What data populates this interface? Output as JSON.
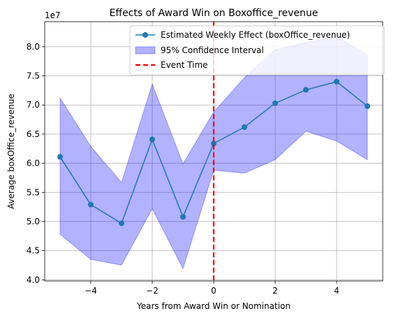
{
  "chart_data": {
    "type": "line",
    "title": "Effects of Award Win on Boxoffice_revenue",
    "xlabel": "Years from Award Win or Nomination",
    "ylabel": "Average boxOffice_revenue",
    "y_offset_label": "1e7",
    "xlim": [
      -5.5,
      5.5
    ],
    "ylim": [
      3.98,
      8.43
    ],
    "x_ticks": [
      -4,
      -2,
      0,
      2,
      4
    ],
    "x_tick_labels": [
      "−4",
      "−2",
      "0",
      "2",
      "4"
    ],
    "y_ticks": [
      4.0,
      4.5,
      5.0,
      5.5,
      6.0,
      6.5,
      7.0,
      7.5,
      8.0
    ],
    "y_tick_labels": [
      "4.0",
      "4.5",
      "5.0",
      "5.5",
      "6.0",
      "6.5",
      "7.0",
      "7.5",
      "8.0"
    ],
    "grid": true,
    "legend_position": "top-right",
    "x": [
      -5,
      -4,
      -3,
      -2,
      -1,
      0,
      1,
      2,
      3,
      4,
      5
    ],
    "series": [
      {
        "name": "Estimated Weekly Effect (boxOffice_revenue)",
        "values": [
          6.11,
          5.29,
          4.97,
          6.41,
          5.08,
          6.34,
          6.62,
          7.03,
          7.26,
          7.4,
          6.98
        ],
        "color": "#1f77b4"
      }
    ],
    "confidence_interval": {
      "name": "95% Confidence Interval",
      "lower": [
        4.78,
        4.35,
        4.25,
        5.22,
        4.19,
        5.88,
        5.83,
        6.06,
        6.55,
        6.38,
        6.06
      ],
      "upper": [
        7.12,
        6.29,
        5.67,
        7.36,
        5.99,
        6.88,
        7.47,
        7.95,
        8.07,
        8.18,
        7.86
      ],
      "color": "#0000ff",
      "alpha": 0.3
    },
    "event_line": {
      "name": "Event Time",
      "x": 0,
      "color": "#ff0000"
    }
  }
}
